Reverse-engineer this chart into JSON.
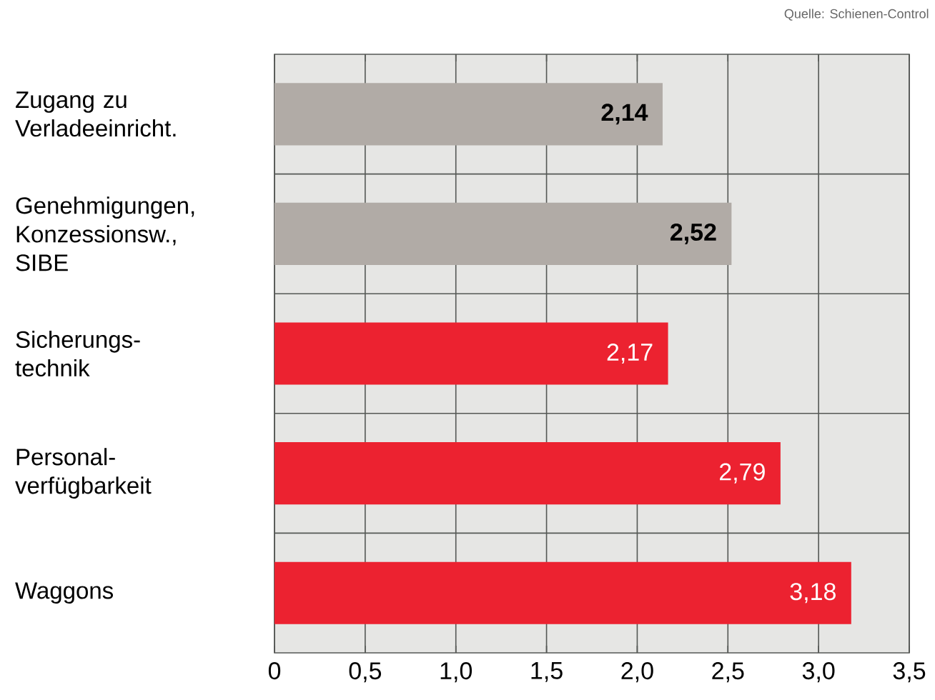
{
  "chart_data": {
    "type": "bar",
    "orientation": "horizontal",
    "categories": [
      "Zugang zu Verladeeinricht.",
      "Genehmigungen, Konzessionsw., SIBE",
      "Sicherungs-technik",
      "Personal-verfügbarkeit",
      "Waggons"
    ],
    "values": [
      2.14,
      2.52,
      2.17,
      2.79,
      3.18
    ],
    "colors": [
      "#b1aba6",
      "#b1aba6",
      "#ec2230",
      "#ec2230",
      "#ec2230"
    ],
    "value_labels": [
      "2,14",
      "2,52",
      "2,17",
      "2,79",
      "3,18"
    ],
    "xlim": [
      0,
      3.5
    ],
    "xticks": [
      0,
      {
        "value": 0.5,
        "label": "0,5"
      },
      {
        "value": 1.0,
        "label": "1,0"
      },
      {
        "value": 1.5,
        "label": "1,5"
      },
      {
        "value": 2.0,
        "label": "2,0"
      },
      {
        "value": 2.5,
        "label": "2,5"
      },
      {
        "value": 3.0,
        "label": "3,0"
      },
      {
        "value": 3.5,
        "label": "3,5"
      }
    ],
    "grid": true,
    "annotations": [
      "Quelle: Schienen-Control"
    ]
  }
}
